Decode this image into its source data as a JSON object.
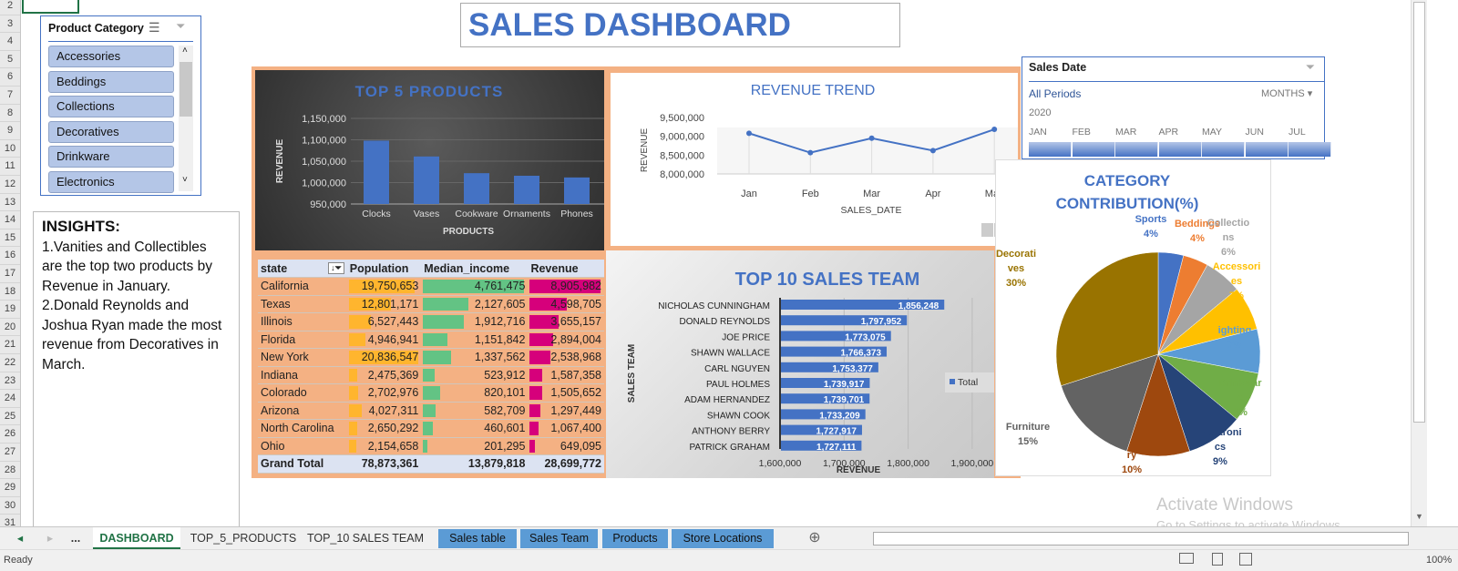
{
  "sheet": {
    "row_numbers": [
      2,
      3,
      4,
      5,
      6,
      7,
      8,
      9,
      10,
      11,
      12,
      13,
      14,
      15,
      16,
      17,
      18,
      19,
      20,
      21,
      22,
      23,
      24,
      25,
      26,
      27,
      28,
      29,
      30,
      31
    ]
  },
  "title": "SALES DASHBOARD",
  "category_slicer": {
    "title": "Product Category",
    "items": [
      "Accessories",
      "Beddings",
      "Collections",
      "Decoratives",
      "Drinkware",
      "Electronics"
    ]
  },
  "insights": {
    "heading": "INSIGHTS:",
    "lines": [
      "1.Vanities and Collectibles are the top two products by Revenue in January.",
      "2.Donald Reynolds and Joshua Ryan made the most revenue from Decoratives in March."
    ]
  },
  "date_slicer": {
    "title": "Sales Date",
    "period": "All Periods",
    "level": "MONTHS",
    "year": "2020",
    "months": [
      "JAN",
      "FEB",
      "MAR",
      "APR",
      "MAY",
      "JUN",
      "JUL"
    ]
  },
  "state_table": {
    "headers": [
      "state",
      "Population",
      "Median_income",
      "Revenue"
    ],
    "rows": [
      [
        "California",
        "19,750,653",
        "4,761,475",
        "8,905,982"
      ],
      [
        "Texas",
        "12,801,171",
        "2,127,605",
        "4,598,705"
      ],
      [
        "Illinois",
        "6,527,443",
        "1,912,716",
        "3,655,157"
      ],
      [
        "Florida",
        "4,946,941",
        "1,151,842",
        "2,894,004"
      ],
      [
        "New York",
        "20,836,547",
        "1,337,562",
        "2,538,968"
      ],
      [
        "Indiana",
        "2,475,369",
        "523,912",
        "1,587,358"
      ],
      [
        "Colorado",
        "2,702,976",
        "820,101",
        "1,505,652"
      ],
      [
        "Arizona",
        "4,027,311",
        "582,709",
        "1,297,449"
      ],
      [
        "North Carolina",
        "2,650,292",
        "460,601",
        "1,067,400"
      ],
      [
        "Ohio",
        "2,154,658",
        "201,295",
        "649,095"
      ]
    ],
    "total": [
      "Grand Total",
      "78,873,361",
      "13,879,818",
      "28,699,772"
    ],
    "bar_colors": [
      "#ffb52e",
      "#63c384",
      "#d6007b"
    ]
  },
  "chart_data": [
    {
      "type": "bar",
      "title": "TOP 5 PRODUCTS",
      "xlabel": "PRODUCTS",
      "ylabel": "REVENUE",
      "categories": [
        "Clocks",
        "Vases",
        "Cookware",
        "Ornaments",
        "Phones"
      ],
      "values": [
        1098000,
        1061000,
        1022000,
        1016000,
        1012000
      ],
      "ylim": [
        950000,
        1150000
      ],
      "yticks": [
        "1,150,000",
        "1,100,000",
        "1,050,000",
        "1,000,000",
        "950,000"
      ],
      "grid": true,
      "color": "#4472c4"
    },
    {
      "type": "line",
      "title": "REVENUE TREND",
      "xlabel": "SALES_DATE",
      "ylabel": "REVENUE",
      "categories": [
        "Jan",
        "Feb",
        "Mar",
        "Apr",
        "May"
      ],
      "values": [
        9080000,
        8565000,
        8950000,
        8620000,
        9185000
      ],
      "ylim": [
        8000000,
        9500000
      ],
      "yticks": [
        "9,500,000",
        "9,000,000",
        "8,500,000",
        "8,000,000"
      ],
      "color": "#4472c4"
    },
    {
      "type": "bar",
      "orientation": "horizontal",
      "title": "TOP 10 SALES TEAM",
      "xlabel": "REVENUE",
      "ylabel": "SALES TEAM",
      "legend": "Total",
      "legend_position": "right",
      "categories": [
        "NICHOLAS CUNNINGHAM",
        "DONALD REYNOLDS",
        "JOE PRICE",
        "SHAWN WALLACE",
        "CARL NGUYEN",
        "PAUL HOLMES",
        "ADAM HERNANDEZ",
        "SHAWN COOK",
        "ANTHONY BERRY",
        "PATRICK GRAHAM"
      ],
      "values": [
        1856248,
        1797952,
        1773075,
        1766373,
        1753377,
        1739917,
        1739701,
        1733209,
        1727917,
        1727111
      ],
      "data_labels": [
        "1,856,248",
        "1,797,952",
        "1,773,075",
        "1,766,373",
        "1,753,377",
        "1,739,917",
        "1,739,701",
        "1,733,209",
        "1,727,917",
        "1,727,111"
      ],
      "xlim": [
        1600000,
        1900000
      ],
      "xticks": [
        "1,600,000",
        "1,700,000",
        "1,800,000",
        "1,900,000"
      ],
      "color": "#4472c4"
    },
    {
      "type": "pie",
      "title": "CATEGORY CONTRIBUTION(%)",
      "labels": [
        "Sports",
        "Beddings",
        "Collectio ns",
        "Accessori es",
        "ighting",
        "Drinkwar e",
        "Electroni cs",
        "ry",
        "Furniture",
        "Decorati ves"
      ],
      "values": [
        4,
        4,
        6,
        7,
        7,
        8,
        9,
        10,
        15,
        30
      ],
      "pct_labels": [
        "4%",
        "4%",
        "6%",
        "7%",
        "7%",
        "8%",
        "9%",
        "10%",
        "15%",
        "30%"
      ],
      "colors": [
        "#4472c4",
        "#ed7d31",
        "#a5a5a5",
        "#ffc000",
        "#5b9bd5",
        "#70ad47",
        "#264478",
        "#9e480e",
        "#636363",
        "#997300"
      ]
    }
  ],
  "tabs": [
    {
      "label": "DASHBOARD",
      "active": true
    },
    {
      "label": "TOP_5_PRODUCTS"
    },
    {
      "label": "TOP_10 SALES TEAM"
    },
    {
      "label": "Sales table",
      "color": "#5b9bd5"
    },
    {
      "label": "Sales Team",
      "color": "#5b9bd5"
    },
    {
      "label": "Products",
      "color": "#5b9bd5"
    },
    {
      "label": "Store Locations",
      "color": "#5b9bd5"
    }
  ],
  "tab_more": "...",
  "status": {
    "left": "Ready",
    "zoom": "100%"
  },
  "watermark": {
    "title": "Activate Windows",
    "subtitle": "Go to Settings to activate Windows."
  }
}
